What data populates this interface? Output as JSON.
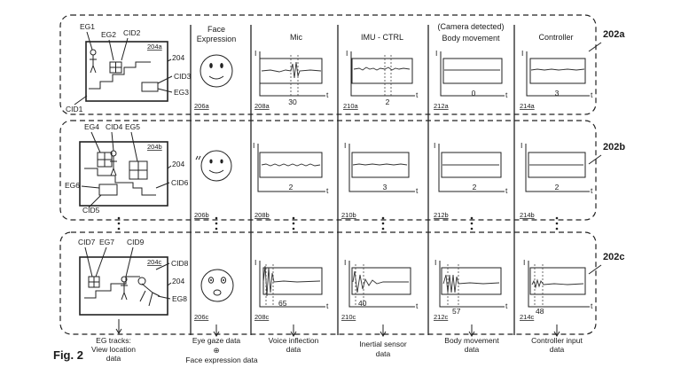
{
  "figure_label": "Fig. 2",
  "columns": {
    "face": [
      "Face",
      "Expression"
    ],
    "mic": "Mic",
    "imu": "IMU - CTRL",
    "camera_note": "(Camera detected)",
    "body": "Body movement",
    "controller": "Controller"
  },
  "rows": [
    {
      "id": "202a",
      "scene_ref": "204a",
      "scene_label": "204",
      "eg_labels": [
        "EG1",
        "EG2",
        "EG3"
      ],
      "cid_labels": [
        "CID1",
        "CID2",
        "CID3",
        "CID1"
      ],
      "refs": [
        "206a",
        "208a",
        "210a",
        "212a",
        "214a"
      ],
      "values": [
        "30",
        "2",
        "0",
        "3"
      ]
    },
    {
      "id": "202b",
      "scene_ref": "204b",
      "scene_label": "204",
      "eg_labels": [
        "EG4",
        "EG5",
        "EG6"
      ],
      "cid_labels": [
        "CID4",
        "CID5",
        "CID6"
      ],
      "refs": [
        "206b",
        "208b",
        "210b",
        "212b",
        "214b"
      ],
      "values": [
        "2",
        "3",
        "2",
        "2"
      ]
    },
    {
      "id": "202c",
      "scene_ref": "204c",
      "scene_label": "204",
      "eg_labels": [
        "EG7",
        "EG8"
      ],
      "cid_labels": [
        "CID7",
        "CID8",
        "CID9"
      ],
      "refs": [
        "206c",
        "208c",
        "210c",
        "212c",
        "214c"
      ],
      "values": [
        "65",
        "40",
        "57",
        "48"
      ]
    }
  ],
  "axis": {
    "i": "I",
    "t": "t"
  },
  "bottom": {
    "eg": [
      "EG tracks:",
      "View location",
      "data"
    ],
    "face": [
      "Eye gaze data",
      "⊕",
      "Face expression data"
    ],
    "voice": [
      "Voice inflection",
      "data"
    ],
    "inertial": [
      "Inertial sensor",
      "data"
    ],
    "body": [
      "Body movement",
      "data"
    ],
    "controller": [
      "Controller input",
      "data"
    ]
  }
}
